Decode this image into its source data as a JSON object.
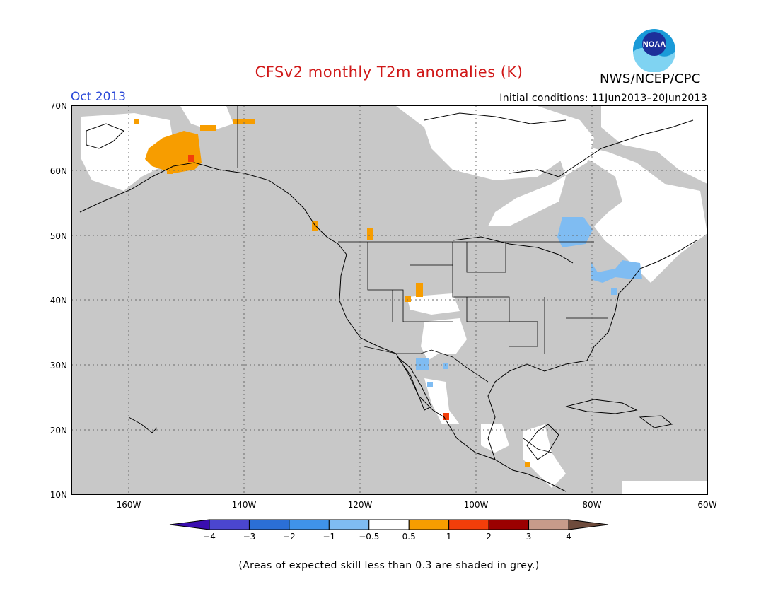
{
  "title": "CFSv2 monthly T2m anomalies (K)",
  "month": "Oct 2013",
  "initial_conditions": "Initial conditions: 11Jun2013–20Jun2013",
  "agency": "NWS/NCEP/CPC",
  "logo_text": "NOAA",
  "footnote": "(Areas of expected skill less than 0.3 are shaded in grey.)",
  "lat_labels": [
    "70N",
    "60N",
    "50N",
    "40N",
    "30N",
    "20N",
    "10N"
  ],
  "lon_labels": [
    "160W",
    "140W",
    "120W",
    "100W",
    "80W",
    "60W"
  ],
  "colorbar": {
    "tick_labels": [
      "−4",
      "−3",
      "−2",
      "−1",
      "−0.5",
      "0.5",
      "1",
      "2",
      "3",
      "4"
    ],
    "colors": [
      "#3a0db0",
      "#4b46cf",
      "#2b6fd6",
      "#3f93ea",
      "#7fbcf2",
      "#ffffff",
      "#f79d00",
      "#f33e0a",
      "#9b0000",
      "#c79b8a",
      "#6e4b3c"
    ]
  },
  "colors": {
    "grey_mask": "#c8c8c8",
    "neutral": "#ffffff",
    "title_red": "#d01818",
    "month_blue": "#2a48d8"
  }
}
